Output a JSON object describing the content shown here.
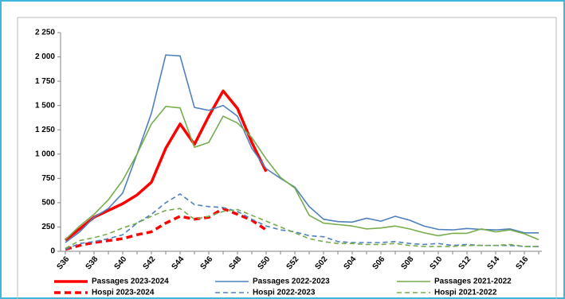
{
  "chart_data": {
    "type": "line",
    "categories": [
      "S36",
      null,
      "S38",
      null,
      "S40",
      null,
      "S42",
      null,
      "S44",
      null,
      "S46",
      null,
      "S48",
      null,
      "S50",
      null,
      "S52",
      null,
      "S02",
      null,
      "S04",
      null,
      "S06",
      null,
      "S08",
      null,
      "S10",
      null,
      "S12",
      null,
      "S14",
      null,
      "S16",
      null
    ],
    "ylim": [
      0,
      2250
    ],
    "yticks": [
      0,
      250,
      500,
      750,
      {
        "value": 1000,
        "label": "1 000"
      },
      {
        "value": 1250,
        "label": "1 250"
      },
      {
        "value": 1500,
        "label": "1 500"
      },
      {
        "value": 1750,
        "label": "1 750"
      },
      {
        "value": 2000,
        "label": "2 000"
      },
      {
        "value": 2250,
        "label": "2 250"
      }
    ],
    "grid": false,
    "legend": "bottom",
    "series": [
      {
        "name": "Passages 2023-2024",
        "color": "#ff0000",
        "style": "solid",
        "bold": true,
        "values": [
          115,
          230,
          350,
          420,
          490,
          580,
          710,
          1060,
          1310,
          1100,
          1390,
          1650,
          1470,
          1120,
          820,
          null,
          null,
          null,
          null,
          null,
          null,
          null,
          null,
          null,
          null,
          null,
          null,
          null,
          null,
          null,
          null,
          null,
          null,
          null
        ]
      },
      {
        "name": "Passages 2022-2023",
        "color": "#4f81bd",
        "style": "solid",
        "bold": false,
        "values": [
          90,
          200,
          350,
          440,
          600,
          1000,
          1420,
          2020,
          2010,
          1480,
          1450,
          1500,
          1390,
          1060,
          850,
          750,
          660,
          460,
          330,
          305,
          300,
          340,
          310,
          360,
          320,
          260,
          225,
          220,
          235,
          225,
          220,
          230,
          190,
          190
        ]
      },
      {
        "name": "Passages 2021-2022",
        "color": "#77ac4c",
        "style": "solid",
        "bold": false,
        "values": [
          120,
          260,
          380,
          530,
          730,
          1000,
          1310,
          1490,
          1475,
          1070,
          1120,
          1390,
          1320,
          1170,
          950,
          760,
          650,
          370,
          290,
          275,
          260,
          230,
          240,
          260,
          230,
          190,
          160,
          185,
          185,
          230,
          200,
          220,
          180,
          120
        ]
      },
      {
        "name": "Hospi 2023-2024",
        "color": "#ff0000",
        "style": "dashed",
        "bold": true,
        "values": [
          20,
          60,
          90,
          110,
          130,
          170,
          200,
          290,
          360,
          330,
          350,
          440,
          380,
          320,
          220,
          null,
          null,
          null,
          null,
          null,
          null,
          null,
          null,
          null,
          null,
          null,
          null,
          null,
          null,
          null,
          null,
          null,
          null,
          null
        ]
      },
      {
        "name": "Hospi 2022-2023",
        "color": "#4f81bd",
        "style": "dashed",
        "bold": false,
        "values": [
          20,
          80,
          100,
          130,
          170,
          290,
          380,
          500,
          590,
          480,
          460,
          450,
          410,
          330,
          260,
          220,
          200,
          160,
          150,
          100,
          90,
          90,
          90,
          100,
          80,
          70,
          80,
          60,
          70,
          60,
          60,
          60,
          50,
          50
        ]
      },
      {
        "name": "Hospi 2021-2022",
        "color": "#77ac4c",
        "style": "dashed",
        "bold": false,
        "values": [
          30,
          110,
          140,
          180,
          240,
          290,
          360,
          420,
          440,
          330,
          360,
          410,
          430,
          370,
          310,
          250,
          190,
          130,
          100,
          80,
          80,
          70,
          70,
          80,
          60,
          50,
          50,
          50,
          60,
          60,
          60,
          70,
          50,
          50
        ]
      }
    ]
  }
}
